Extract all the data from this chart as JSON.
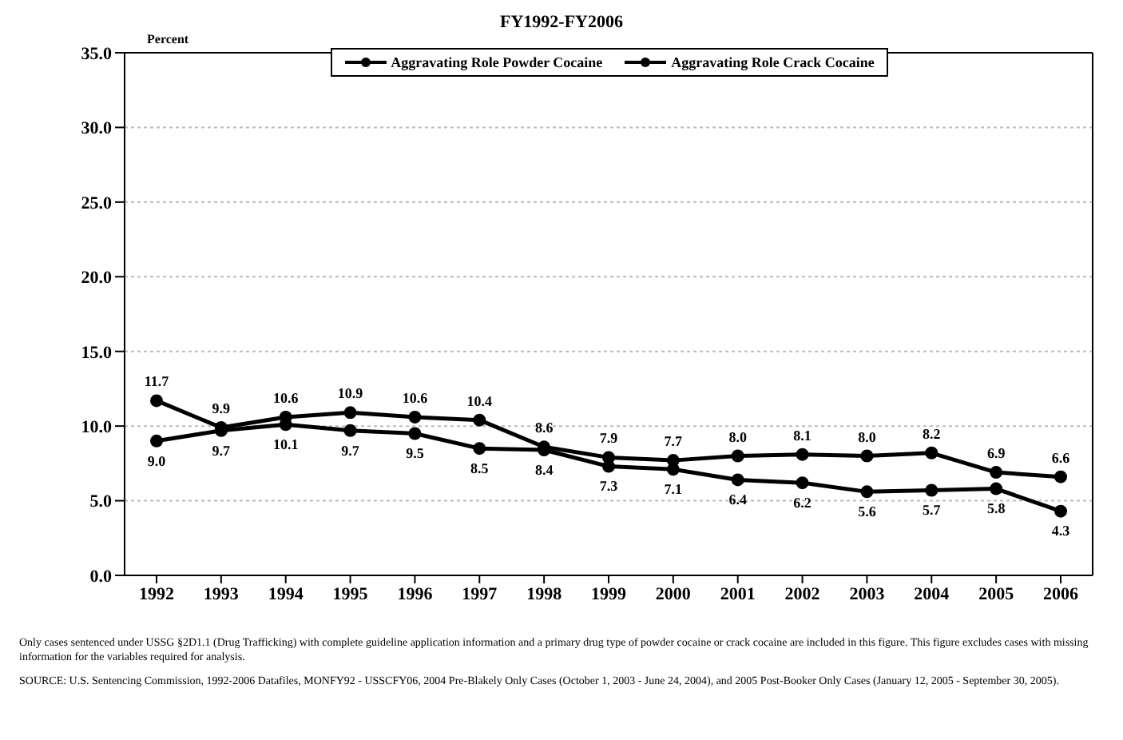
{
  "chart_data": {
    "type": "line",
    "title": "FY1992-FY2006",
    "ylabel": "Percent",
    "categories": [
      "1992",
      "1993",
      "1994",
      "1995",
      "1996",
      "1997",
      "1998",
      "1999",
      "2000",
      "2001",
      "2002",
      "2003",
      "2004",
      "2005",
      "2006"
    ],
    "series": [
      {
        "name": "Aggravating Role Powder Cocaine",
        "color": "#000000",
        "values": [
          11.7,
          9.9,
          10.6,
          10.9,
          10.6,
          10.4,
          8.6,
          7.9,
          7.7,
          8.0,
          8.1,
          8.0,
          8.2,
          6.9,
          6.6
        ],
        "value_labels": [
          "11.7",
          "9.9",
          "10.6",
          "10.9",
          "10.6",
          "10.4",
          "8.6",
          "7.9",
          "7.7",
          "8.0",
          "8.1",
          "8.0",
          "8.2",
          "6.9",
          "6.6"
        ]
      },
      {
        "name": "Aggravating Role Crack Cocaine",
        "color": "#000000",
        "values": [
          9.0,
          9.7,
          10.1,
          9.7,
          9.5,
          8.5,
          8.4,
          7.3,
          7.1,
          6.4,
          6.2,
          5.6,
          5.7,
          5.8,
          4.3
        ],
        "value_labels": [
          "9.0",
          "9.7",
          "10.1",
          "9.7",
          "9.5",
          "8.5",
          "8.4",
          "7.3",
          "7.1",
          "6.4",
          "6.2",
          "5.6",
          "5.7",
          "5.8",
          "4.3"
        ]
      }
    ],
    "ylim": [
      0,
      35
    ],
    "yticks": [
      {
        "value": 0,
        "label": "0.0"
      },
      {
        "value": 5,
        "label": "5.0"
      },
      {
        "value": 10,
        "label": "10.0"
      },
      {
        "value": 15,
        "label": "15.0"
      },
      {
        "value": 20,
        "label": "20.0"
      },
      {
        "value": 25,
        "label": "25.0"
      },
      {
        "value": 30,
        "label": "30.0"
      },
      {
        "value": 35,
        "label": "35.0"
      }
    ],
    "grid": "y",
    "legend": "top",
    "marker": "circle",
    "line_style": "solid",
    "annotations": [
      "Only cases sentenced under USSG §2D1.1 (Drug Trafficking) with complete guideline application information and a primary drug type of powder cocaine or crack cocaine are included in this figure. This figure excludes cases with missing information for the variables required for analysis.",
      "SOURCE: U.S. Sentencing Commission, 1992-2006 Datafiles, MONFY92 - USSCFY06, 2004 Pre-Blakely Only Cases (October 1, 2003 - June 24, 2004), and 2005 Post-Booker Only Cases (January 12, 2005 - September 30, 2005)."
    ]
  }
}
